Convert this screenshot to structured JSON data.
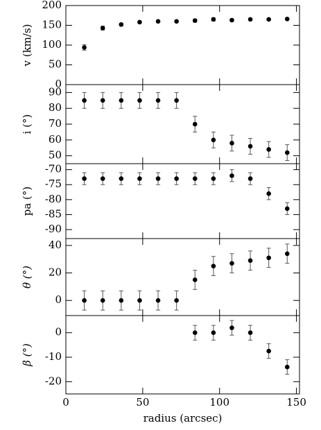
{
  "chart_data": [
    {
      "type": "scatter",
      "ylabel": "v (km/s)",
      "xlim": [
        0,
        152
      ],
      "ylim": [
        0,
        200
      ],
      "yticks": [
        0,
        50,
        100,
        150,
        200
      ],
      "x": [
        12,
        24,
        36,
        48,
        60,
        72,
        84,
        96,
        108,
        120,
        132,
        144
      ],
      "values": [
        94,
        143,
        152,
        158,
        160,
        160,
        162,
        165,
        163,
        165,
        165,
        166
      ],
      "errors": [
        7,
        5,
        3,
        2,
        2,
        2,
        4,
        4,
        3,
        2,
        2,
        2
      ],
      "color": "#000000"
    },
    {
      "type": "scatter",
      "ylabel": "i (°)",
      "xlim": [
        0,
        152
      ],
      "ylim": [
        45,
        95
      ],
      "yticks": [
        50,
        60,
        70,
        80,
        90
      ],
      "x": [
        12,
        24,
        36,
        48,
        60,
        72,
        84,
        96,
        108,
        120,
        132,
        144
      ],
      "values": [
        85,
        85,
        85,
        85,
        85,
        85,
        70,
        60,
        58,
        56,
        54,
        52
      ],
      "errors": [
        5,
        5,
        5,
        5,
        5,
        5,
        5,
        5,
        5,
        5,
        5,
        5
      ],
      "color": "#000000"
    },
    {
      "type": "scatter",
      "ylabel": "pa (°)",
      "xlim": [
        0,
        152
      ],
      "ylim": [
        -93,
        -68
      ],
      "yticks": [
        -90,
        -85,
        -80,
        -75,
        -70
      ],
      "x": [
        12,
        24,
        36,
        48,
        60,
        72,
        84,
        96,
        108,
        120,
        132,
        144
      ],
      "values": [
        -73,
        -73,
        -73,
        -73,
        -73,
        -73,
        -73,
        -73,
        -72,
        -73,
        -78,
        -83
      ],
      "errors": [
        2,
        2,
        2,
        2,
        2,
        2,
        2,
        2,
        2,
        2,
        2,
        2
      ],
      "color": "#000000"
    },
    {
      "type": "scatter",
      "ylabel": "θ (°)",
      "xlim": [
        0,
        152
      ],
      "ylim": [
        -11,
        45
      ],
      "yticks": [
        0,
        20,
        40
      ],
      "x": [
        12,
        24,
        36,
        48,
        60,
        72,
        84,
        96,
        108,
        120,
        132,
        144
      ],
      "values": [
        0,
        0,
        0,
        0,
        0,
        0,
        15,
        25,
        27,
        29,
        31,
        34
      ],
      "errors": [
        7,
        7,
        7,
        7,
        7,
        7,
        7,
        7,
        7,
        7,
        7,
        7
      ],
      "color": "#000000"
    },
    {
      "type": "scatter",
      "ylabel": "β (°)",
      "xlabel": "radius (arcsec)",
      "xlim": [
        0,
        152
      ],
      "xticks": [
        0,
        50,
        100,
        150
      ],
      "ylim": [
        -25,
        7
      ],
      "yticks": [
        -20,
        -10,
        0
      ],
      "x": [
        84,
        96,
        108,
        120,
        132,
        144
      ],
      "values": [
        0,
        0,
        2,
        0,
        -7.5,
        -14
      ],
      "errors": [
        3,
        3,
        3,
        3,
        3,
        3
      ],
      "color": "#000000"
    }
  ]
}
